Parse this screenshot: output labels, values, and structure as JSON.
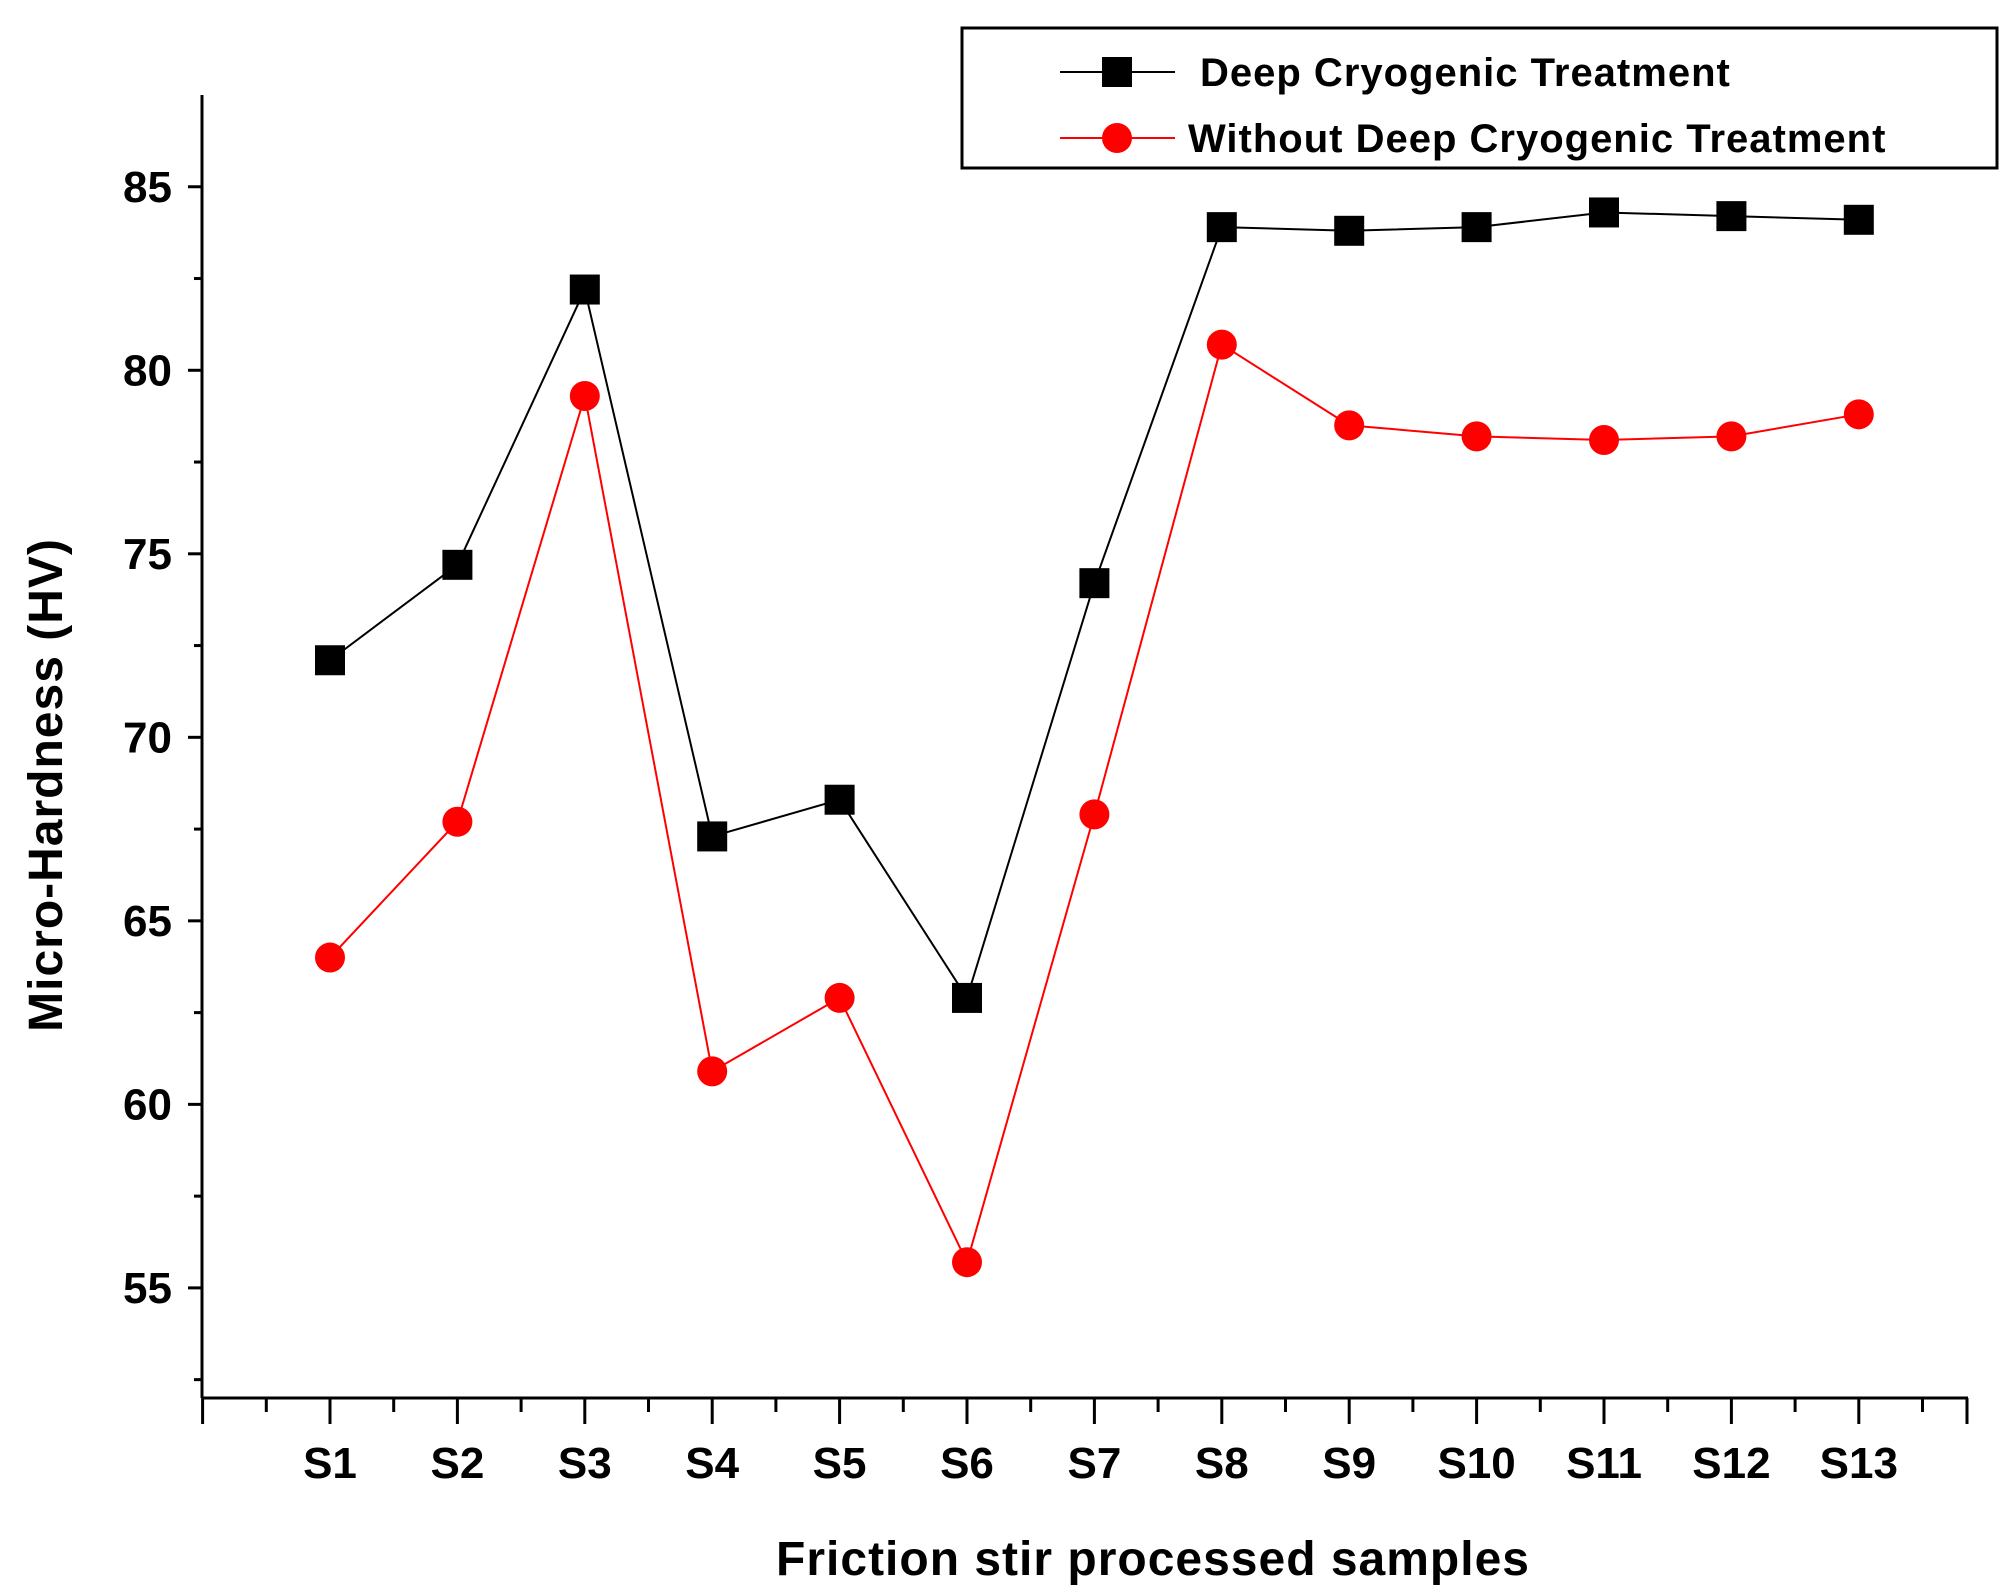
{
  "chart_data": {
    "type": "line",
    "title": "",
    "xlabel": "Friction stir processed samples",
    "ylabel": "Micro-Hardness (HV)",
    "categories": [
      "S1",
      "S2",
      "S3",
      "S4",
      "S5",
      "S6",
      "S7",
      "S8",
      "S9",
      "S10",
      "S11",
      "S12",
      "S13"
    ],
    "ylim": [
      52,
      87.5
    ],
    "yticks": [
      55,
      60,
      65,
      70,
      75,
      80,
      85
    ],
    "series": [
      {
        "name": "Deep Cryogenic Treatment",
        "color": "#000000",
        "marker": "square",
        "values": [
          72.1,
          74.7,
          82.2,
          67.3,
          68.3,
          62.9,
          74.2,
          83.9,
          83.8,
          83.9,
          84.3,
          84.2,
          84.1
        ]
      },
      {
        "name": "Without Deep Cryogenic Treatment",
        "color": "#ff0000",
        "marker": "circle",
        "values": [
          64.0,
          67.7,
          79.3,
          60.9,
          62.9,
          55.7,
          67.9,
          80.7,
          78.5,
          78.2,
          78.1,
          78.2,
          78.8
        ]
      }
    ],
    "legend_position": "top-right",
    "grid": false
  }
}
